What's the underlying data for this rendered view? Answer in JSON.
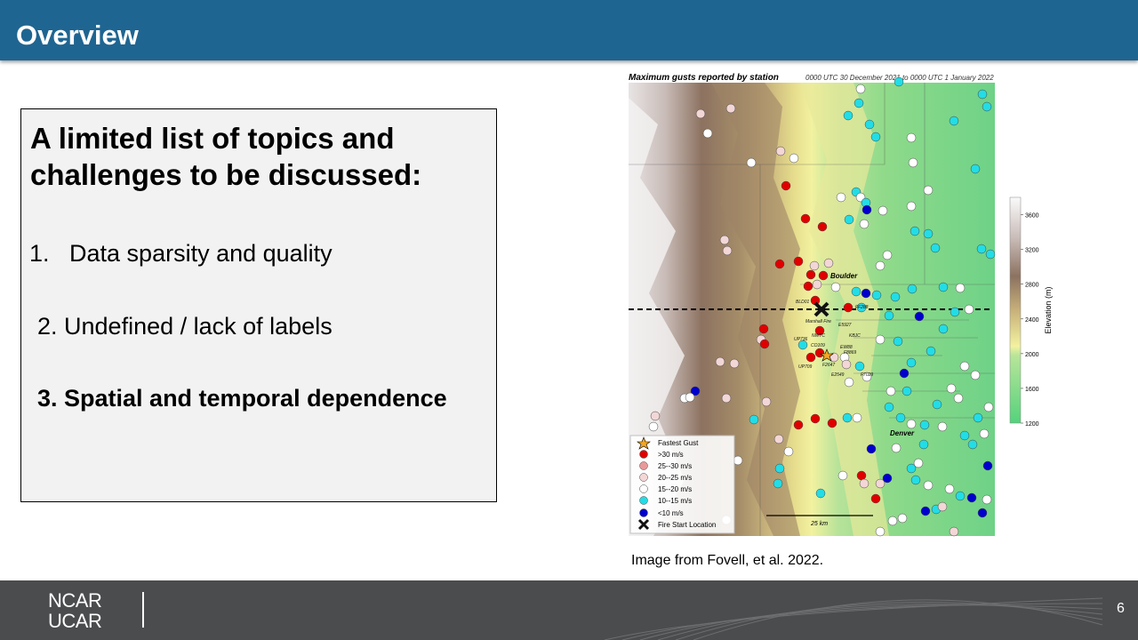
{
  "header": {
    "title": "Overview"
  },
  "panel": {
    "heading": [
      "A limited list of topics and",
      "challenges to be discussed:"
    ],
    "items": [
      "1.   Data sparsity and quality",
      "2. Undefined / lack of labels",
      "3. Spatial and temporal dependence"
    ]
  },
  "figure": {
    "title": "Maximum gusts reported by station",
    "subtitle": "0000 UTC 30 December 2021 to 0000 UTC 1 January 2022",
    "places": [
      "Boulder",
      "Denver"
    ],
    "stations": [
      "BLD01",
      "Marshall Fire",
      "E5927",
      "NWTC",
      "KBJC",
      "UP736",
      "CO109",
      "EW88",
      "F8869",
      "UP709",
      "F2647",
      "E2549",
      "F7029",
      "FF288"
    ],
    "scale": "25 km",
    "legend": [
      "Fastest Gust",
      ">30 m/s",
      "25--30 m/s",
      "20--25 m/s",
      "15--20 m/s",
      "10--15 m/s",
      "<10 m/s",
      "Fire Start Location"
    ],
    "colorbar": {
      "label": "Elevation (m)",
      "range": [
        1200,
        3800
      ],
      "ticks": [
        1200,
        1600,
        2000,
        2400,
        2800,
        3200,
        3600
      ]
    },
    "caption": "Image from Fovell, et al. 2022."
  },
  "footer": {
    "logo": [
      "NCAR",
      "UCAR"
    ],
    "page": "6"
  }
}
